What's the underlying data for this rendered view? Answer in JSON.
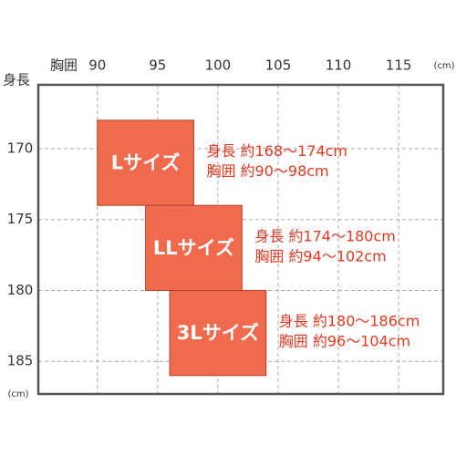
{
  "chart_data": {
    "type": "size-range",
    "x_label": "胸囲",
    "y_label": "身長",
    "x_unit": "(cm)",
    "y_unit": "(cm)",
    "xlim": [
      85.1,
      118.7
    ],
    "xticks": [
      90,
      95,
      100,
      105,
      110,
      115
    ],
    "ylim": [
      165.5,
      187.3
    ],
    "yticks": [
      170,
      175,
      180,
      185
    ],
    "y_inverted": true,
    "grid": true,
    "color": "#f06a4d",
    "label_color": "#e8381f",
    "boxes": [
      {
        "name": "Lサイズ",
        "x": [
          90,
          98
        ],
        "y": [
          168,
          174
        ],
        "height_label": "身長 約168～174cm",
        "chest_label": "胸囲 約90～98cm"
      },
      {
        "name": "LLサイズ",
        "x": [
          94,
          102
        ],
        "y": [
          174,
          180
        ],
        "height_label": "身長 約174～180cm",
        "chest_label": "胸囲 約94～102cm"
      },
      {
        "name": "3Lサイズ",
        "x": [
          96,
          104
        ],
        "y": [
          180,
          186
        ],
        "height_label": "身長 約180～186cm",
        "chest_label": "胸囲 約96～104cm"
      }
    ]
  }
}
